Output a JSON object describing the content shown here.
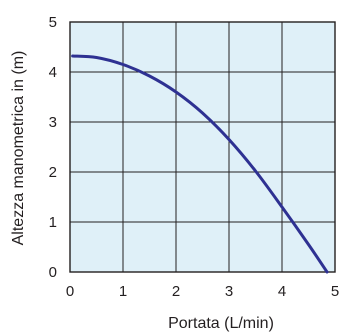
{
  "chart_data": {
    "type": "line",
    "title": "",
    "xlabel": "Portata (L/min)",
    "ylabel": "Altezza manometrica in (m)",
    "xlim": [
      0,
      5
    ],
    "ylim": [
      0,
      5
    ],
    "x_ticks": [
      "0",
      "1",
      "2",
      "3",
      "4",
      "5"
    ],
    "y_ticks": [
      "0",
      "1",
      "2",
      "3",
      "4",
      "5"
    ],
    "grid": true,
    "colors": {
      "background": "#dff0f8",
      "grid": "#231f20",
      "line": "#2e3192"
    },
    "series": [
      {
        "x": [
          0.05,
          0.5,
          1.0,
          1.5,
          2.0,
          2.5,
          3.0,
          3.5,
          4.0,
          4.5,
          4.85
        ],
        "y": [
          4.32,
          4.29,
          4.15,
          3.92,
          3.6,
          3.18,
          2.65,
          2.02,
          1.3,
          0.55,
          0.0
        ]
      }
    ]
  }
}
